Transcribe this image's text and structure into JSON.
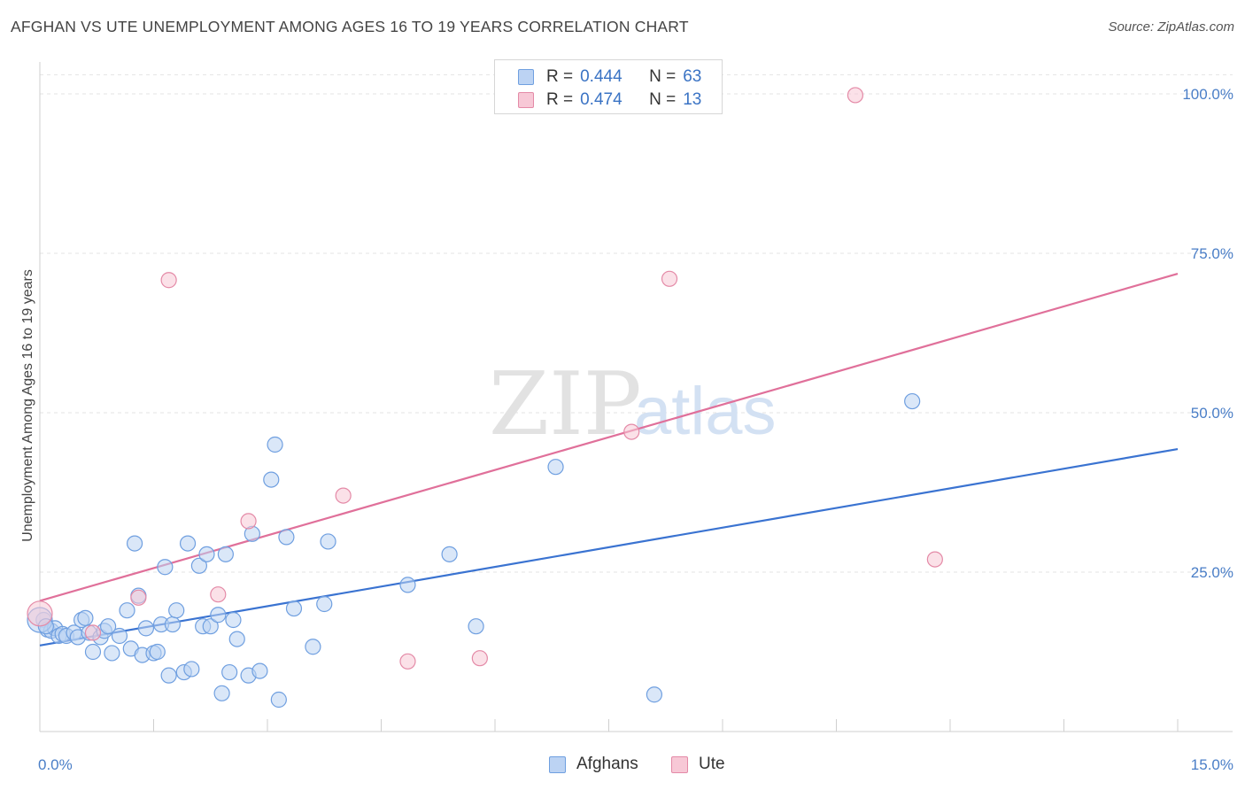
{
  "title": "AFGHAN VS UTE UNEMPLOYMENT AMONG AGES 16 TO 19 YEARS CORRELATION CHART",
  "source": "Source: ZipAtlas.com",
  "watermark": {
    "zip": "ZIP",
    "atlas": "atlas"
  },
  "legend": {
    "rows": [
      {
        "r_label": "R =",
        "r_value": "0.444",
        "n_label": "N =",
        "n_value": "63",
        "fill": "#bcd3f3",
        "stroke": "#6f9fe0"
      },
      {
        "r_label": "R =",
        "r_value": "0.474",
        "n_label": "N =",
        "n_value": "13",
        "fill": "#f7c8d6",
        "stroke": "#e48aa7"
      }
    ]
  },
  "bottom_legend": [
    {
      "label": "Afghans",
      "fill": "#bcd3f3",
      "stroke": "#6f9fe0"
    },
    {
      "label": "Ute",
      "fill": "#f7c8d6",
      "stroke": "#e48aa7"
    }
  ],
  "chart_data": {
    "type": "scatter",
    "title": "AFGHAN VS UTE UNEMPLOYMENT AMONG AGES 16 TO 19 YEARS CORRELATION CHART",
    "xlabel": "",
    "ylabel": "Unemployment Among Ages 16 to 19 years",
    "xlim": [
      0,
      15
    ],
    "ylim": [
      0,
      105
    ],
    "x_tick_labels": [
      "0.0%",
      "15.0%"
    ],
    "y_ticks": [
      25,
      50,
      75,
      100
    ],
    "y_tick_labels": [
      "25.0%",
      "50.0%",
      "75.0%",
      "100.0%"
    ],
    "grid": "horizontal dashed",
    "legend_position": "top-center",
    "series": [
      {
        "name": "Afghans",
        "color": "#3a73d1",
        "fill": "#bcd3f3",
        "stroke": "#6f9fe0",
        "trend": {
          "x": [
            0,
            15
          ],
          "y": [
            13.5,
            44.3
          ]
        },
        "points": [
          [
            0.05,
            17.5
          ],
          [
            0.1,
            16.0
          ],
          [
            0.15,
            15.8
          ],
          [
            0.2,
            16.2
          ],
          [
            0.25,
            15.0
          ],
          [
            0.3,
            15.3
          ],
          [
            0.35,
            15.0
          ],
          [
            0.45,
            15.5
          ],
          [
            0.5,
            14.8
          ],
          [
            0.55,
            17.5
          ],
          [
            0.6,
            17.8
          ],
          [
            0.65,
            15.5
          ],
          [
            0.7,
            12.5
          ],
          [
            0.8,
            14.8
          ],
          [
            0.85,
            15.8
          ],
          [
            0.9,
            16.5
          ],
          [
            0.95,
            12.3
          ],
          [
            1.05,
            15.0
          ],
          [
            1.15,
            19.0
          ],
          [
            1.2,
            13.0
          ],
          [
            1.25,
            29.5
          ],
          [
            1.3,
            21.3
          ],
          [
            1.35,
            12.0
          ],
          [
            1.4,
            16.2
          ],
          [
            1.5,
            12.3
          ],
          [
            1.55,
            12.5
          ],
          [
            1.6,
            16.8
          ],
          [
            1.65,
            25.8
          ],
          [
            1.7,
            8.8
          ],
          [
            1.75,
            16.8
          ],
          [
            1.8,
            19.0
          ],
          [
            1.9,
            9.3
          ],
          [
            1.95,
            29.5
          ],
          [
            2.0,
            9.8
          ],
          [
            2.1,
            26.0
          ],
          [
            2.15,
            16.5
          ],
          [
            2.2,
            27.8
          ],
          [
            2.25,
            16.5
          ],
          [
            2.35,
            18.3
          ],
          [
            2.4,
            6.0
          ],
          [
            2.45,
            27.8
          ],
          [
            2.5,
            9.3
          ],
          [
            2.55,
            17.5
          ],
          [
            2.6,
            14.5
          ],
          [
            2.75,
            8.8
          ],
          [
            2.8,
            31.0
          ],
          [
            2.9,
            9.5
          ],
          [
            3.05,
            39.5
          ],
          [
            3.1,
            45.0
          ],
          [
            3.15,
            5.0
          ],
          [
            3.25,
            30.5
          ],
          [
            3.35,
            19.3
          ],
          [
            3.6,
            13.3
          ],
          [
            3.75,
            20.0
          ],
          [
            3.8,
            29.8
          ],
          [
            4.85,
            23.0
          ],
          [
            5.4,
            27.8
          ],
          [
            5.75,
            16.5
          ],
          [
            6.8,
            41.5
          ],
          [
            8.1,
            5.8
          ],
          [
            11.5,
            51.8
          ],
          [
            0.0,
            17.5
          ],
          [
            0.08,
            16.5
          ]
        ]
      },
      {
        "name": "Ute",
        "color": "#e0709a",
        "fill": "#f7c8d6",
        "stroke": "#e48aa7",
        "trend": {
          "x": [
            0,
            15
          ],
          "y": [
            20.5,
            71.8
          ]
        },
        "points": [
          [
            0.0,
            18.5
          ],
          [
            0.7,
            15.5
          ],
          [
            1.3,
            21.0
          ],
          [
            1.7,
            70.8
          ],
          [
            2.35,
            21.5
          ],
          [
            2.75,
            33.0
          ],
          [
            4.0,
            37.0
          ],
          [
            4.85,
            11.0
          ],
          [
            5.8,
            11.5
          ],
          [
            7.8,
            47.0
          ],
          [
            8.3,
            71.0
          ],
          [
            10.75,
            99.8
          ],
          [
            11.8,
            27.0
          ]
        ]
      }
    ]
  }
}
